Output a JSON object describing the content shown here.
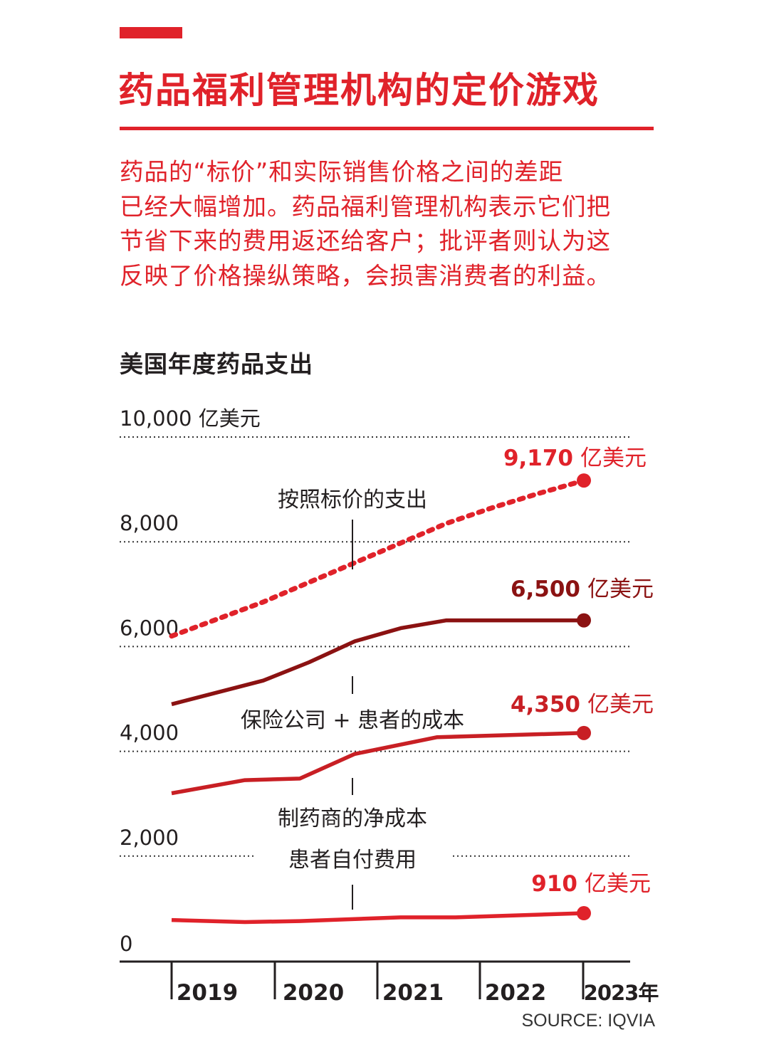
{
  "header": {
    "title": "药品福利管理机构的定价游戏",
    "intro_lines": [
      "药品的“标价”和实际销售价格之间的差距",
      "已经大幅增加。药品福利管理机构表示它们把",
      "节省下来的费用返还给客户；批评者则认为这",
      "反映了价格操纵策略，会损害消费者的利益。"
    ]
  },
  "colors": {
    "accent": "#e0222a",
    "list_price": "#e0222a",
    "insurer_patient": "#8b1212",
    "manufacturer_net": "#c81f24",
    "patient_oop": "#e0222a",
    "text": "#231f20"
  },
  "chart_data": {
    "type": "line",
    "title": "美国年度药品支出",
    "x": [
      "2019",
      "2020",
      "2021",
      "2022",
      "2023"
    ],
    "x_tick_labels": [
      "2019",
      "2020",
      "2021",
      "2022",
      "2023年"
    ],
    "x_label_suffix": "年",
    "y_tick_labels": [
      "0",
      "2,000",
      "4,000",
      "6,000",
      "8,000",
      "10,000 亿美元"
    ],
    "y_ticks": [
      0,
      2000,
      4000,
      6000,
      8000,
      10000
    ],
    "ylim": [
      0,
      10000
    ],
    "y_unit": "亿美元",
    "grid": "dotted horizontal",
    "series": [
      {
        "key": "list_price",
        "name": "按照标价的支出",
        "style": "dotted",
        "points": [
          [
            2018.5,
            6200
          ],
          [
            2019.5,
            6850
          ],
          [
            2020.5,
            7600
          ],
          [
            2021.5,
            8350
          ],
          [
            2022.0,
            8650
          ],
          [
            2022.5,
            8920
          ],
          [
            2023.0,
            9170
          ]
        ],
        "end_value": "9,170",
        "end_unit": "亿美元"
      },
      {
        "key": "insurer_patient",
        "name": "保险公司 + 患者的成本",
        "style": "solid",
        "points": [
          [
            2018.5,
            4900
          ],
          [
            2019.5,
            5350
          ],
          [
            2020.0,
            5700
          ],
          [
            2020.5,
            6100
          ],
          [
            2021.0,
            6350
          ],
          [
            2021.5,
            6500
          ],
          [
            2023.0,
            6500
          ]
        ],
        "end_value": "6,500",
        "end_unit": "亿美元"
      },
      {
        "key": "manufacturer_net",
        "name": "制药商的净成本",
        "style": "solid",
        "points": [
          [
            2018.5,
            3200
          ],
          [
            2019.3,
            3450
          ],
          [
            2019.9,
            3480
          ],
          [
            2020.5,
            3950
          ],
          [
            2021.4,
            4270
          ],
          [
            2023.0,
            4350
          ]
        ],
        "end_value": "4,350",
        "end_unit": "亿美元"
      },
      {
        "key": "patient_oop",
        "name": "患者自付费用",
        "style": "solid",
        "points": [
          [
            2018.5,
            780
          ],
          [
            2019.3,
            740
          ],
          [
            2019.9,
            760
          ],
          [
            2021.0,
            830
          ],
          [
            2021.6,
            830
          ],
          [
            2023.0,
            910
          ]
        ],
        "end_value": "910",
        "end_unit": "亿美元"
      }
    ]
  },
  "source": "SOURCE: IQVIA"
}
